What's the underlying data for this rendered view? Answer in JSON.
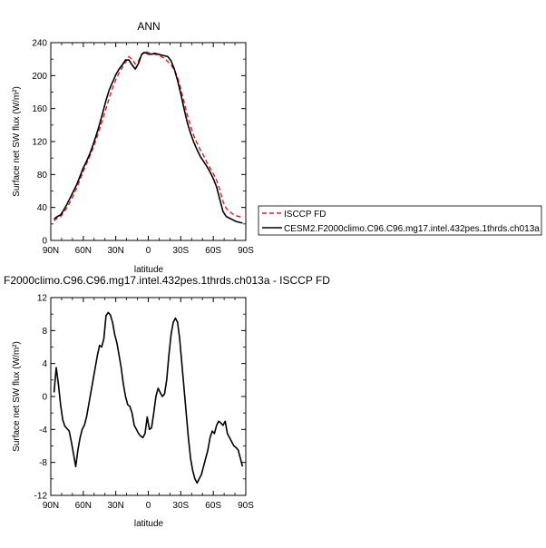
{
  "chart_data": [
    {
      "type": "line",
      "title": "ANN",
      "xlabel": "latitude",
      "ylabel": "Surface net SW flux (W/m²)",
      "xlim": [
        -90,
        90
      ],
      "ylim": [
        0,
        240
      ],
      "x_ticks": [
        -90,
        -60,
        -30,
        0,
        30,
        60,
        90
      ],
      "x_tick_labels": [
        "90N",
        "60N",
        "30N",
        "0",
        "30S",
        "60S",
        "90S"
      ],
      "y_ticks": [
        0,
        40,
        80,
        120,
        160,
        200,
        240
      ],
      "y_tick_labels": [
        "0",
        "40",
        "80",
        "120",
        "160",
        "200",
        "240"
      ],
      "grid": false,
      "legend_position": "right",
      "series": [
        {
          "name": "ISCCP FD",
          "color": "#e8161c",
          "dash": "dashed",
          "x": [
            -87,
            -84,
            -81,
            -78,
            -75,
            -72,
            -69,
            -66,
            -63,
            -60,
            -57,
            -54,
            -51,
            -48,
            -45,
            -42,
            -39,
            -36,
            -33,
            -30,
            -27,
            -24,
            -21,
            -18,
            -15,
            -12,
            -9,
            -6,
            -3,
            0,
            3,
            6,
            9,
            12,
            15,
            18,
            21,
            24,
            27,
            30,
            33,
            36,
            39,
            42,
            45,
            48,
            51,
            54,
            57,
            60,
            63,
            66,
            69,
            72,
            75,
            78,
            81,
            84,
            87
          ],
          "y": [
            24,
            27,
            29,
            34,
            40,
            47,
            55,
            64,
            74,
            84,
            93,
            102,
            112,
            123,
            135,
            147,
            160,
            173,
            185,
            195,
            203,
            210,
            216,
            223,
            220,
            214,
            218,
            226,
            230,
            228,
            226,
            226,
            225,
            223,
            221,
            217,
            213,
            207,
            198,
            184,
            168,
            152,
            139,
            127,
            118,
            110,
            103,
            95,
            88,
            81,
            73,
            62,
            47,
            39,
            35,
            32,
            30,
            29,
            28
          ]
        },
        {
          "name": "CESM2.F2000climo.C96.C96.mg17.intel.432pes.1thrds.ch013a",
          "color": "#000000",
          "dash": "solid",
          "x": [
            -87,
            -84,
            -81,
            -78,
            -75,
            -72,
            -69,
            -66,
            -63,
            -60,
            -57,
            -54,
            -51,
            -48,
            -45,
            -42,
            -39,
            -36,
            -33,
            -30,
            -27,
            -24,
            -21,
            -18,
            -15,
            -12,
            -9,
            -6,
            -3,
            0,
            3,
            6,
            9,
            12,
            15,
            18,
            21,
            24,
            27,
            30,
            33,
            36,
            39,
            42,
            45,
            48,
            51,
            54,
            57,
            60,
            63,
            66,
            69,
            72,
            75,
            78,
            81,
            84,
            87
          ],
          "y": [
            26,
            29,
            31,
            37,
            44,
            52,
            60,
            68,
            78,
            88,
            96,
            105,
            116,
            128,
            141,
            155,
            170,
            183,
            192,
            201,
            208,
            213,
            219,
            219,
            213,
            208,
            215,
            226,
            228,
            226,
            226,
            227,
            226,
            225,
            224,
            223,
            218,
            208,
            194,
            178,
            160,
            143,
            130,
            119,
            110,
            102,
            96,
            90,
            83,
            75,
            65,
            50,
            35,
            29,
            27,
            25,
            23,
            22,
            21
          ]
        }
      ]
    },
    {
      "type": "line",
      "title": "F2000climo.C96.C96.mg17.intel.432pes.1thrds.ch013a - ISCCP FD",
      "xlabel": "latitude",
      "ylabel": "Surface net SW flux (W/m²)",
      "xlim": [
        -90,
        90
      ],
      "ylim": [
        -12,
        12
      ],
      "x_ticks": [
        -90,
        -60,
        -30,
        0,
        30,
        60,
        90
      ],
      "x_tick_labels": [
        "90N",
        "60N",
        "30N",
        "0",
        "30S",
        "60S",
        "90S"
      ],
      "y_ticks": [
        -12,
        -8,
        -4,
        0,
        4,
        8,
        12
      ],
      "y_tick_labels": [
        "-12",
        "-8",
        "-4",
        "0",
        "4",
        "8",
        "12"
      ],
      "grid": false,
      "series": [
        {
          "color": "#000000",
          "dash": "solid",
          "x": [
            -87,
            -85,
            -83,
            -81,
            -79,
            -77,
            -75,
            -73,
            -71,
            -69,
            -67,
            -65,
            -63,
            -61,
            -59,
            -57,
            -55,
            -53,
            -51,
            -49,
            -47,
            -45,
            -43,
            -41,
            -39,
            -37,
            -35,
            -33,
            -31,
            -29,
            -27,
            -25,
            -23,
            -21,
            -19,
            -17,
            -15,
            -13,
            -11,
            -9,
            -7,
            -5,
            -3,
            -1,
            1,
            3,
            5,
            7,
            9,
            11,
            13,
            15,
            17,
            19,
            21,
            23,
            25,
            27,
            29,
            31,
            33,
            35,
            37,
            39,
            41,
            43,
            45,
            47,
            49,
            51,
            53,
            55,
            57,
            59,
            61,
            63,
            65,
            67,
            69,
            71,
            73,
            75,
            77,
            79,
            81,
            83,
            85,
            87
          ],
          "y": [
            0.5,
            3.5,
            1.5,
            -1.0,
            -2.8,
            -3.6,
            -3.9,
            -4.2,
            -5.5,
            -7.0,
            -8.5,
            -6.5,
            -5.0,
            -4.0,
            -3.5,
            -2.5,
            -1.0,
            0.5,
            2.0,
            3.5,
            5.0,
            6.2,
            6.0,
            7.0,
            9.8,
            10.2,
            9.9,
            9.0,
            7.5,
            6.5,
            5.0,
            3.5,
            1.5,
            0.0,
            -1.0,
            -1.2,
            -2.0,
            -3.5,
            -4.0,
            -4.5,
            -4.8,
            -5.0,
            -4.5,
            -2.5,
            -4.0,
            -3.8,
            -2.0,
            0.0,
            1.0,
            0.5,
            0.0,
            0.3,
            2.0,
            5.0,
            7.5,
            9.0,
            9.5,
            9.0,
            7.0,
            4.0,
            1.0,
            -2.0,
            -5.0,
            -7.5,
            -9.0,
            -10.0,
            -10.5,
            -10.0,
            -9.5,
            -8.5,
            -7.5,
            -6.5,
            -5.0,
            -4.2,
            -4.5,
            -3.5,
            -3.0,
            -3.2,
            -3.5,
            -3.0,
            -4.5,
            -5.0,
            -5.5,
            -6.0,
            -6.2,
            -6.5,
            -7.5,
            -8.5
          ]
        }
      ]
    }
  ]
}
